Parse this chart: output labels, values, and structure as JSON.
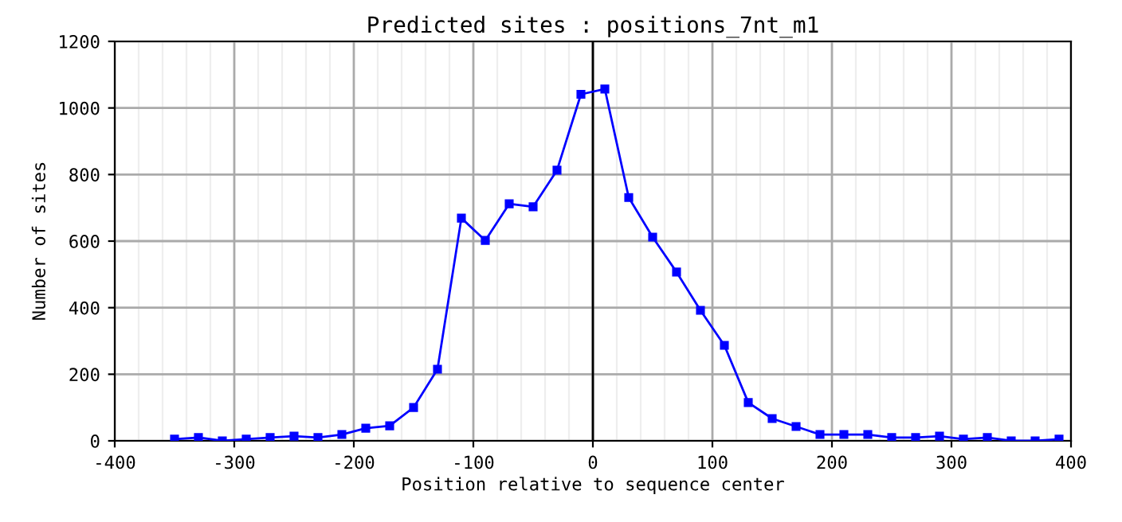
{
  "chart_data": {
    "type": "line",
    "title": "Predicted sites : positions_7nt_m1",
    "xlabel": "Position relative to sequence center",
    "ylabel": "Number of sites",
    "x": [
      -350,
      -330,
      -310,
      -290,
      -270,
      -250,
      -230,
      -210,
      -190,
      -170,
      -150,
      -130,
      -110,
      -90,
      -70,
      -50,
      -30,
      -10,
      10,
      30,
      50,
      70,
      90,
      110,
      130,
      150,
      170,
      190,
      210,
      230,
      250,
      270,
      290,
      310,
      330,
      350,
      370,
      390
    ],
    "series": [
      {
        "color": "#0000ff",
        "values": [
          5,
          10,
          0,
          5,
          10,
          14,
          10,
          19,
          38,
          45,
          100,
          215,
          669,
          602,
          712,
          703,
          813,
          1041,
          1057,
          731,
          612,
          507,
          392,
          287,
          115,
          67,
          43,
          19,
          19,
          19,
          10,
          10,
          14,
          5,
          10,
          0,
          0,
          5
        ]
      }
    ],
    "xlim": [
      -400,
      400
    ],
    "xticks": [
      -400,
      -300,
      -200,
      -100,
      0,
      100,
      200,
      300,
      400
    ],
    "ylim": [
      0,
      1200
    ],
    "yticks": [
      0,
      200,
      400,
      600,
      800,
      1000,
      1200
    ],
    "ref_lines": [
      {
        "axis": "x",
        "value": 0,
        "color": "#000000"
      }
    ],
    "grid": true,
    "marker": "square",
    "line_style": "solid",
    "legend": false
  }
}
